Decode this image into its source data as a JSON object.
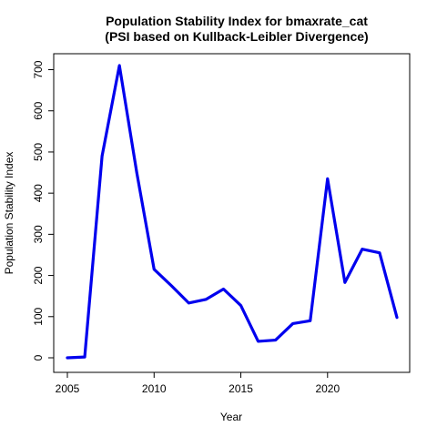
{
  "chart_data": {
    "type": "line",
    "title": "Population Stability Index for bmaxrate_cat",
    "subtitle": "(PSI based on Kullback-Leibler Divergence)",
    "xlabel": "Year",
    "ylabel": "Population Stability Index",
    "xlim": [
      2005,
      2024
    ],
    "ylim": [
      0,
      710
    ],
    "x_ticks": [
      2005,
      2010,
      2015,
      2020
    ],
    "y_ticks": [
      0,
      100,
      200,
      300,
      400,
      500,
      600,
      700
    ],
    "grid": false,
    "series": [
      {
        "color": "#0000ee",
        "x": [
          2005,
          2006,
          2007,
          2008,
          2009,
          2010,
          2011,
          2012,
          2013,
          2014,
          2015,
          2016,
          2017,
          2018,
          2019,
          2020,
          2021,
          2022,
          2023,
          2024
        ],
        "y": [
          0,
          2,
          490,
          710,
          450,
          215,
          175,
          133,
          142,
          167,
          127,
          40,
          43,
          83,
          90,
          435,
          183,
          264,
          255,
          98
        ]
      }
    ]
  }
}
